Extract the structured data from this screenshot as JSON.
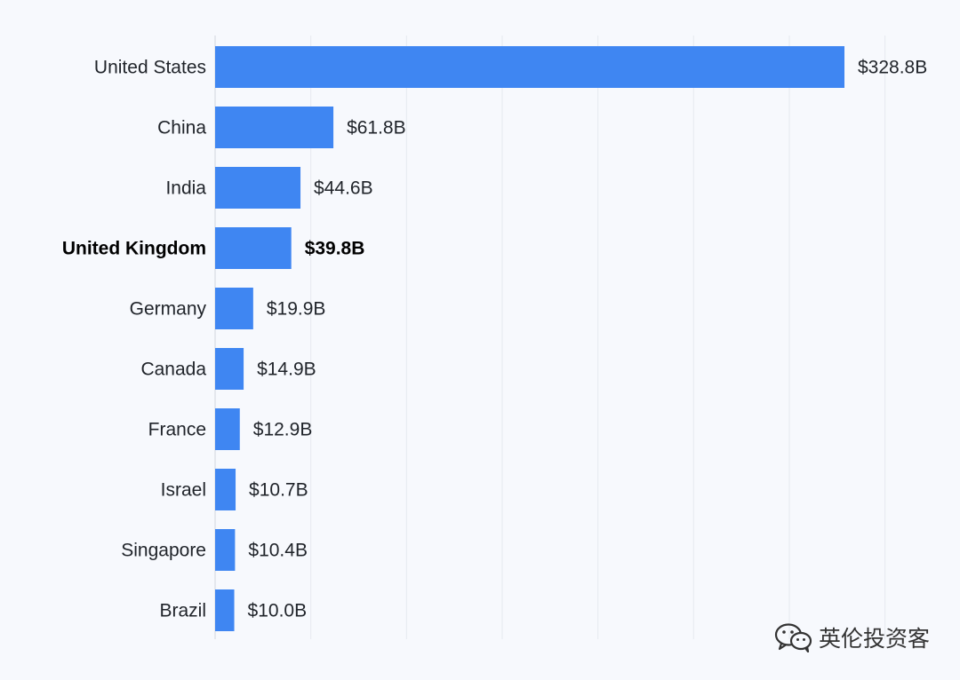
{
  "chart_data": {
    "type": "bar",
    "orientation": "horizontal",
    "categories": [
      "United States",
      "China",
      "India",
      "United Kingdom",
      "Germany",
      "Canada",
      "France",
      "Israel",
      "Singapore",
      "Brazil"
    ],
    "values": [
      328.8,
      61.8,
      44.6,
      39.8,
      19.9,
      14.9,
      12.9,
      10.7,
      10.4,
      10.0
    ],
    "value_labels": [
      "$328.8B",
      "$61.8B",
      "$44.6B",
      "$39.8B",
      "$19.9B",
      "$14.9B",
      "$12.9B",
      "$10.7B",
      "$10.4B",
      "$10.0B"
    ],
    "highlight_category": "United Kingdom",
    "title": "",
    "xlabel": "",
    "ylabel": "",
    "xlim": [
      0,
      350
    ],
    "grid": true,
    "bar_color": "#3f86f2",
    "grid_color": "#e6e9ef"
  },
  "watermark": {
    "text": "英伦投资客",
    "icon": "wechat-icon"
  }
}
